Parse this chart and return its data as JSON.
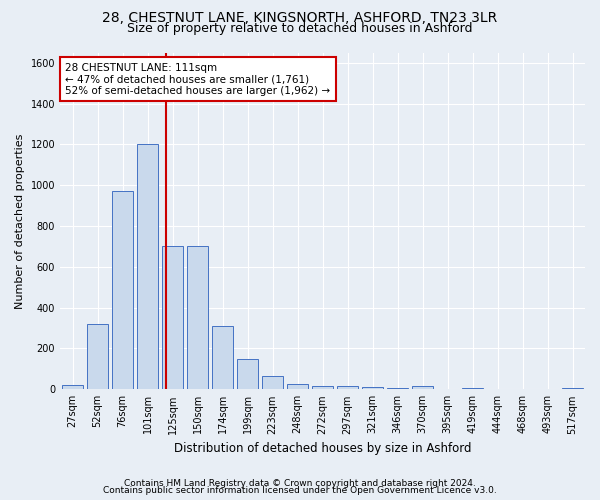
{
  "title_line1": "28, CHESTNUT LANE, KINGSNORTH, ASHFORD, TN23 3LR",
  "title_line2": "Size of property relative to detached houses in Ashford",
  "xlabel": "Distribution of detached houses by size in Ashford",
  "ylabel": "Number of detached properties",
  "categories": [
    "27sqm",
    "52sqm",
    "76sqm",
    "101sqm",
    "125sqm",
    "150sqm",
    "174sqm",
    "199sqm",
    "223sqm",
    "248sqm",
    "272sqm",
    "297sqm",
    "321sqm",
    "346sqm",
    "370sqm",
    "395sqm",
    "419sqm",
    "444sqm",
    "468sqm",
    "493sqm",
    "517sqm"
  ],
  "values": [
    22,
    320,
    970,
    1200,
    700,
    700,
    310,
    150,
    65,
    25,
    15,
    15,
    10,
    5,
    15,
    0,
    5,
    0,
    0,
    0,
    5
  ],
  "bar_color": "#c9d9ec",
  "bar_edge_color": "#4472c4",
  "vline_bin": 3.75,
  "vline_color": "#cc0000",
  "annotation_line1": "28 CHESTNUT LANE: 111sqm",
  "annotation_line2": "← 47% of detached houses are smaller (1,761)",
  "annotation_line3": "52% of semi-detached houses are larger (1,962) →",
  "annotation_box_color": "#ffffff",
  "annotation_box_edge": "#cc0000",
  "ylim": [
    0,
    1650
  ],
  "yticks": [
    0,
    200,
    400,
    600,
    800,
    1000,
    1200,
    1400,
    1600
  ],
  "footer_line1": "Contains HM Land Registry data © Crown copyright and database right 2024.",
  "footer_line2": "Contains public sector information licensed under the Open Government Licence v3.0.",
  "bg_color": "#e8eef5",
  "title1_fontsize": 10,
  "title2_fontsize": 9,
  "tick_fontsize": 7,
  "ylabel_fontsize": 8,
  "xlabel_fontsize": 8.5,
  "footer_fontsize": 6.5,
  "annot_fontsize": 7.5
}
